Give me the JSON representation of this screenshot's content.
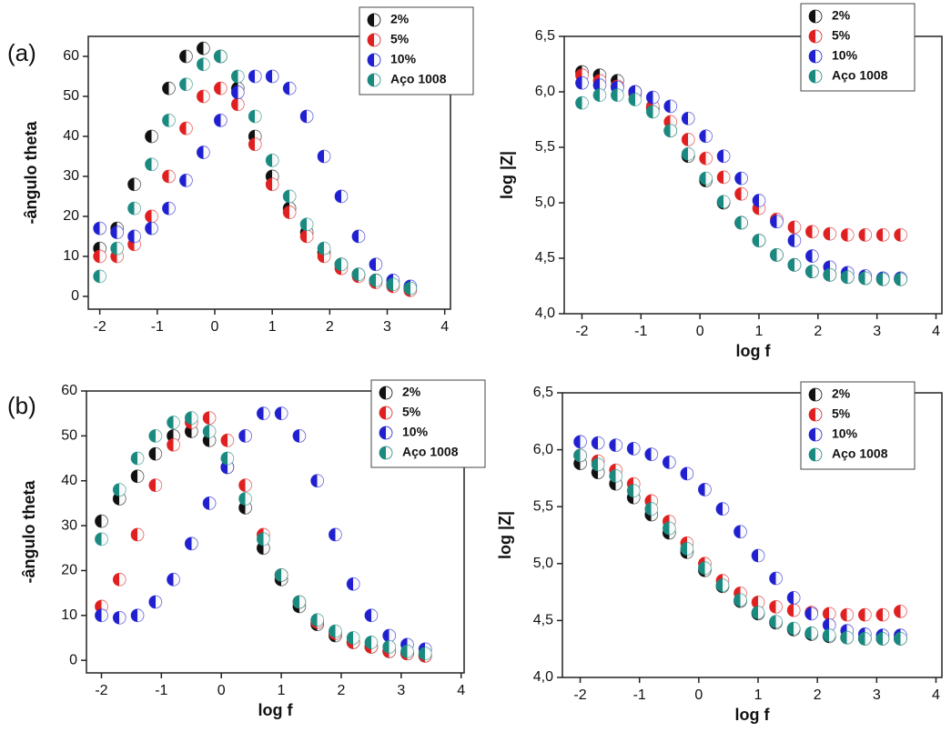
{
  "chart_data": [
    {
      "type": "scatter",
      "panel_label": "(a)",
      "ylabel": "-ângulo theta",
      "x": [
        -2,
        -1.7,
        -1.4,
        -1.1,
        -0.8,
        -0.5,
        -0.2,
        0.1,
        0.4,
        0.7,
        1.0,
        1.3,
        1.6,
        1.9,
        2.2,
        2.5,
        2.8,
        3.1,
        3.4
      ],
      "xlim": [
        -2.2,
        4.1
      ],
      "xticks": [
        -2,
        -1,
        0,
        1,
        2,
        3,
        4
      ],
      "ylim": [
        -3.2,
        65
      ],
      "yticks": [
        0,
        10,
        20,
        30,
        40,
        50,
        60
      ],
      "legend": "upper right",
      "series": [
        {
          "name": "2%",
          "color": "#111111",
          "values": [
            12,
            17,
            28,
            40,
            52,
            60,
            62,
            60,
            52,
            40,
            30,
            22,
            16,
            11,
            8,
            5.5,
            4,
            3,
            2
          ]
        },
        {
          "name": "5%",
          "color": "#e02020",
          "values": [
            10,
            10,
            13,
            20,
            30,
            42,
            50,
            52,
            48,
            38,
            28,
            21,
            15,
            10,
            7,
            5,
            3.5,
            2.5,
            1.5
          ]
        },
        {
          "name": "10%",
          "color": "#2020d0",
          "values": [
            17,
            16,
            15,
            17,
            22,
            29,
            36,
            44,
            51,
            55,
            55,
            52,
            45,
            35,
            25,
            15,
            8,
            4,
            2.5
          ]
        },
        {
          "name": "Aço 1008",
          "color": "#1a8a80",
          "values": [
            5,
            12,
            22,
            33,
            44,
            53,
            58,
            60,
            55,
            45,
            34,
            25,
            18,
            12,
            8,
            5.5,
            4,
            3,
            2
          ]
        }
      ]
    },
    {
      "type": "scatter",
      "xlabel": "log f",
      "ylabel": "log |Z|",
      "x": [
        -2,
        -1.7,
        -1.4,
        -1.1,
        -0.8,
        -0.5,
        -0.2,
        0.1,
        0.4,
        0.7,
        1.0,
        1.3,
        1.6,
        1.9,
        2.2,
        2.5,
        2.8,
        3.1,
        3.4
      ],
      "xlim": [
        -2.3,
        4.1
      ],
      "xticks": [
        -2,
        -1,
        0,
        1,
        2,
        3,
        4
      ],
      "ylim": [
        4.0,
        6.5
      ],
      "yticks": [
        {
          "value": 4.0,
          "label": "4,0"
        },
        {
          "value": 4.5,
          "label": "4,5"
        },
        {
          "value": 5.0,
          "label": "5,0"
        },
        {
          "value": 5.5,
          "label": "5,5"
        },
        {
          "value": 6.0,
          "label": "6,0"
        },
        {
          "value": 6.5,
          "label": "6,5"
        }
      ],
      "legend": "upper right",
      "series": [
        {
          "name": "2%",
          "color": "#111111",
          "values": [
            6.18,
            6.15,
            6.1,
            6.0,
            5.85,
            5.65,
            5.42,
            5.2,
            5.0,
            4.82,
            4.66,
            4.53,
            4.44,
            4.38,
            4.35,
            4.33,
            4.32,
            4.31,
            4.31
          ]
        },
        {
          "name": "5%",
          "color": "#e02020",
          "values": [
            6.15,
            6.1,
            6.05,
            5.98,
            5.87,
            5.73,
            5.57,
            5.4,
            5.23,
            5.08,
            4.95,
            4.85,
            4.78,
            4.74,
            4.72,
            4.71,
            4.71,
            4.71,
            4.71
          ]
        },
        {
          "name": "10%",
          "color": "#2020d0",
          "values": [
            6.08,
            6.06,
            6.04,
            6.0,
            5.95,
            5.87,
            5.76,
            5.6,
            5.42,
            5.22,
            5.02,
            4.83,
            4.66,
            4.52,
            4.42,
            4.37,
            4.34,
            4.32,
            4.32
          ]
        },
        {
          "name": "Aço 1008",
          "color": "#1a8a80",
          "values": [
            5.9,
            5.97,
            5.97,
            5.93,
            5.82,
            5.65,
            5.44,
            5.22,
            5.01,
            4.82,
            4.66,
            4.53,
            4.44,
            4.38,
            4.35,
            4.33,
            4.32,
            4.31,
            4.31
          ]
        }
      ]
    },
    {
      "type": "scatter",
      "panel_label": "(b)",
      "xlabel": "log f",
      "ylabel": "-ângulo theta",
      "x": [
        -2,
        -1.7,
        -1.4,
        -1.1,
        -0.8,
        -0.5,
        -0.2,
        0.1,
        0.4,
        0.7,
        1.0,
        1.3,
        1.6,
        1.9,
        2.2,
        2.5,
        2.8,
        3.1,
        3.4
      ],
      "xlim": [
        -2.25,
        4.05
      ],
      "xticks": [
        -2,
        -1,
        0,
        1,
        2,
        3,
        4
      ],
      "ylim": [
        -2.8,
        60
      ],
      "yticks": [
        0,
        10,
        20,
        30,
        40,
        50,
        60
      ],
      "legend": "upper right",
      "series": [
        {
          "name": "2%",
          "color": "#111111",
          "values": [
            31,
            36,
            41,
            46,
            50,
            51,
            49,
            43,
            34,
            25,
            18,
            12,
            8,
            5.5,
            4,
            3,
            2,
            1.5,
            1
          ]
        },
        {
          "name": "5%",
          "color": "#e02020",
          "values": [
            12,
            18,
            28,
            39,
            48,
            53,
            54,
            49,
            39,
            28,
            19,
            13,
            8.5,
            6,
            4,
            3,
            2,
            1.5,
            1
          ]
        },
        {
          "name": "10%",
          "color": "#2020d0",
          "values": [
            10,
            9.5,
            10,
            13,
            18,
            26,
            35,
            43,
            50,
            55,
            55,
            50,
            40,
            28,
            17,
            10,
            5.5,
            3.5,
            2.5
          ]
        },
        {
          "name": "Aço 1008",
          "color": "#1a8a80",
          "values": [
            27,
            38,
            45,
            50,
            53,
            54,
            51,
            45,
            36,
            27,
            19,
            13,
            9,
            6.5,
            5,
            4,
            3,
            2,
            1.5
          ]
        }
      ]
    },
    {
      "type": "scatter",
      "xlabel": "log f",
      "ylabel": "log |Z|",
      "x": [
        -2,
        -1.7,
        -1.4,
        -1.1,
        -0.8,
        -0.5,
        -0.2,
        0.1,
        0.4,
        0.7,
        1.0,
        1.3,
        1.6,
        1.9,
        2.2,
        2.5,
        2.8,
        3.1,
        3.4
      ],
      "xlim": [
        -2.3,
        4.1
      ],
      "xticks": [
        -2,
        -1,
        0,
        1,
        2,
        3,
        4
      ],
      "ylim": [
        4.0,
        6.5
      ],
      "yticks": [
        {
          "value": 4.0,
          "label": "4,0"
        },
        {
          "value": 4.5,
          "label": "4,5"
        },
        {
          "value": 5.0,
          "label": "5,0"
        },
        {
          "value": 5.5,
          "label": "5,5"
        },
        {
          "value": 6.0,
          "label": "6,0"
        },
        {
          "value": 6.5,
          "label": "6,5"
        }
      ],
      "legend": "upper right",
      "series": [
        {
          "name": "2%",
          "color": "#111111",
          "values": [
            5.88,
            5.8,
            5.7,
            5.58,
            5.43,
            5.27,
            5.1,
            4.94,
            4.8,
            4.67,
            4.56,
            4.48,
            4.42,
            4.38,
            4.36,
            4.35,
            4.34,
            4.34,
            4.34
          ]
        },
        {
          "name": "5%",
          "color": "#e02020",
          "values": [
            5.95,
            5.9,
            5.82,
            5.7,
            5.55,
            5.37,
            5.18,
            5.0,
            4.85,
            4.74,
            4.66,
            4.62,
            4.59,
            4.57,
            4.56,
            4.55,
            4.55,
            4.55,
            4.58
          ]
        },
        {
          "name": "10%",
          "color": "#2020d0",
          "values": [
            6.07,
            6.06,
            6.04,
            6.01,
            5.96,
            5.89,
            5.79,
            5.65,
            5.48,
            5.28,
            5.07,
            4.87,
            4.7,
            4.56,
            4.46,
            4.41,
            4.38,
            4.37,
            4.37
          ]
        },
        {
          "name": "Aço 1008",
          "color": "#1a8a80",
          "values": [
            5.95,
            5.87,
            5.77,
            5.64,
            5.48,
            5.31,
            5.13,
            4.96,
            4.81,
            4.68,
            4.57,
            4.49,
            4.43,
            4.39,
            4.37,
            4.35,
            4.34,
            4.34,
            4.34
          ]
        }
      ]
    }
  ]
}
